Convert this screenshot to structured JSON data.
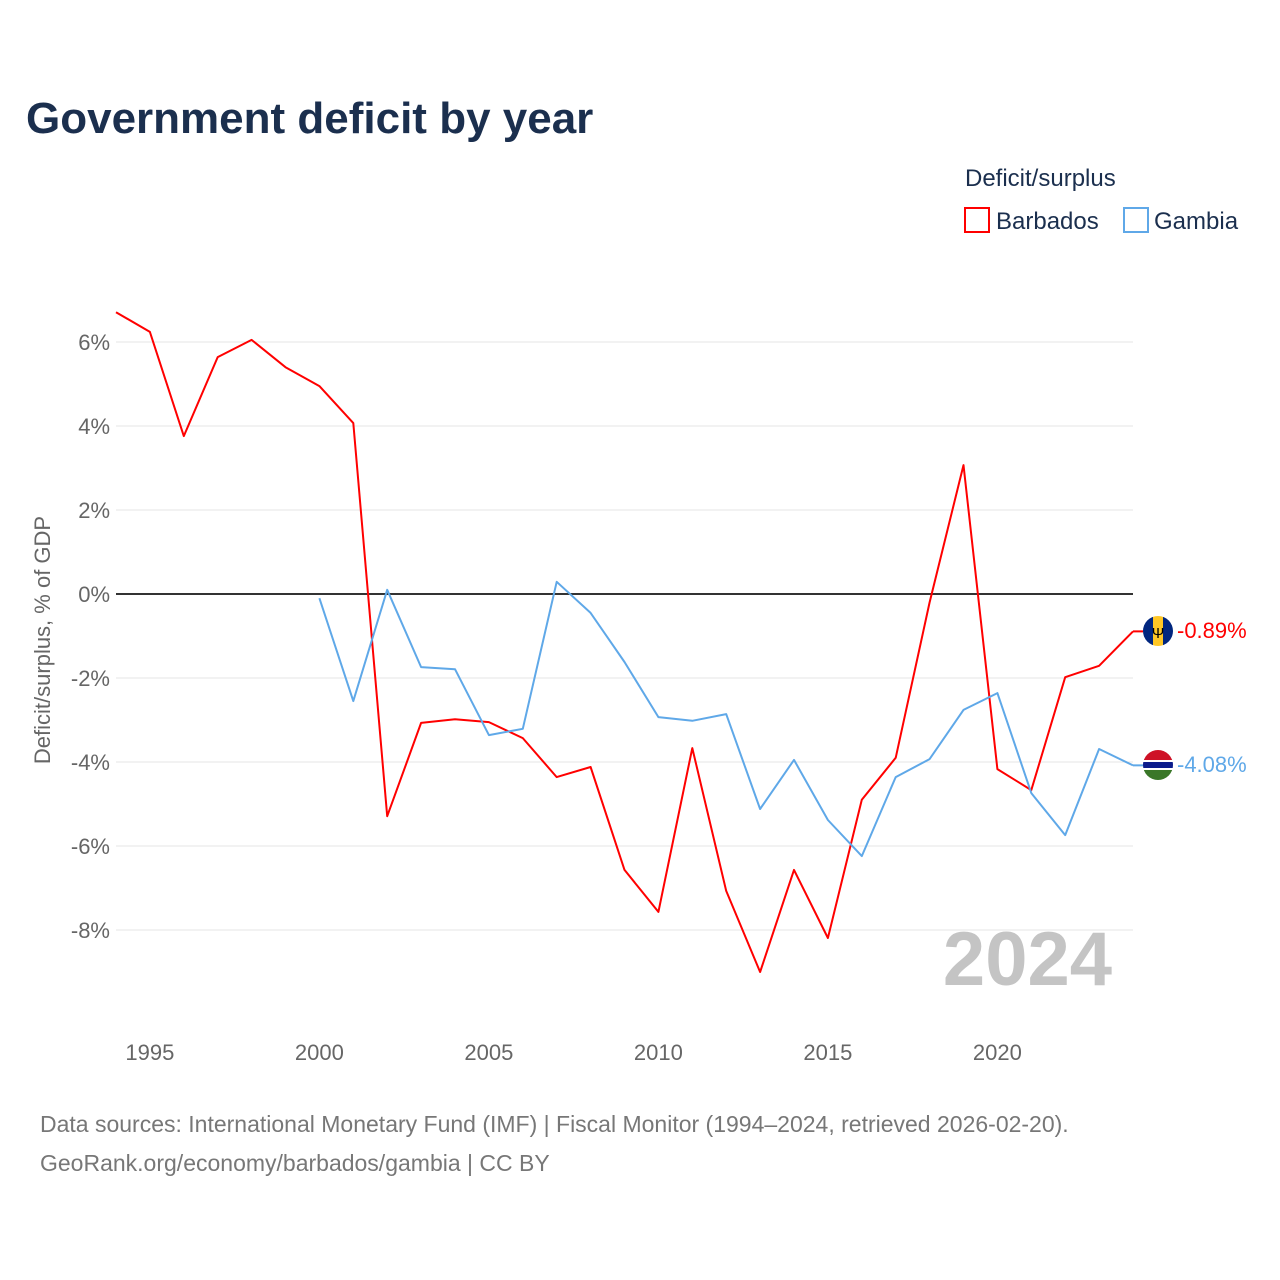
{
  "chart_data": {
    "type": "line",
    "title": "Government deficit by year",
    "legend_title": "Deficit/surplus",
    "legend_placement": "top-right",
    "ylabel": "Deficit/surplus, % of GDP",
    "xlabel": "",
    "xlim": [
      1994,
      2024
    ],
    "ylim": [
      -10,
      7
    ],
    "x_ticks": [
      1995,
      2000,
      2005,
      2010,
      2015,
      2020
    ],
    "y_ticks": [
      6,
      4,
      2,
      0,
      -2,
      -4,
      -6,
      -8
    ],
    "y_tick_labels": [
      "6%",
      "4%",
      "2%",
      "0%",
      "-2%",
      "-4%",
      "-6%",
      "-8%"
    ],
    "grid": true,
    "watermark_year": "2024",
    "series": [
      {
        "name": "Barbados",
        "color": "#ff0000",
        "end_label": "-0.89%",
        "x": [
          1994,
          1995,
          1996,
          1997,
          1998,
          1999,
          2000,
          2001,
          2002,
          2003,
          2004,
          2005,
          2006,
          2007,
          2008,
          2009,
          2010,
          2011,
          2012,
          2013,
          2014,
          2015,
          2016,
          2017,
          2018,
          2019,
          2020,
          2021,
          2022,
          2023,
          2024
        ],
        "values": [
          6.71,
          6.24,
          3.76,
          5.64,
          6.05,
          5.4,
          4.95,
          4.07,
          -5.29,
          -3.07,
          -2.98,
          -3.05,
          -3.43,
          -4.36,
          -4.12,
          -6.57,
          -7.57,
          -3.67,
          -7.07,
          -9.0,
          -6.57,
          -8.19,
          -4.9,
          -3.9,
          -0.2,
          3.07,
          -4.17,
          -4.67,
          -1.98,
          -1.71,
          -0.89
        ]
      },
      {
        "name": "Gambia",
        "color": "#5fa8e8",
        "end_label": "-4.08%",
        "x": [
          2000,
          2001,
          2002,
          2003,
          2004,
          2005,
          2006,
          2007,
          2008,
          2009,
          2010,
          2011,
          2012,
          2013,
          2014,
          2015,
          2016,
          2017,
          2018,
          2019,
          2020,
          2021,
          2022,
          2023,
          2024
        ],
        "values": [
          -0.1,
          -2.55,
          0.1,
          -1.74,
          -1.79,
          -3.36,
          -3.21,
          0.29,
          -0.45,
          -1.62,
          -2.93,
          -3.02,
          -2.86,
          -5.12,
          -3.95,
          -5.38,
          -6.24,
          -4.36,
          -3.93,
          -2.76,
          -2.36,
          -4.74,
          -5.74,
          -3.69,
          -4.08
        ]
      }
    ]
  },
  "footer": {
    "source_line": "Data sources: International Monetary Fund (IMF) | Fiscal Monitor (1994–2024, retrieved 2026-02-20).",
    "attribution_line": "GeoRank.org/economy/barbados/gambia | CC BY"
  }
}
